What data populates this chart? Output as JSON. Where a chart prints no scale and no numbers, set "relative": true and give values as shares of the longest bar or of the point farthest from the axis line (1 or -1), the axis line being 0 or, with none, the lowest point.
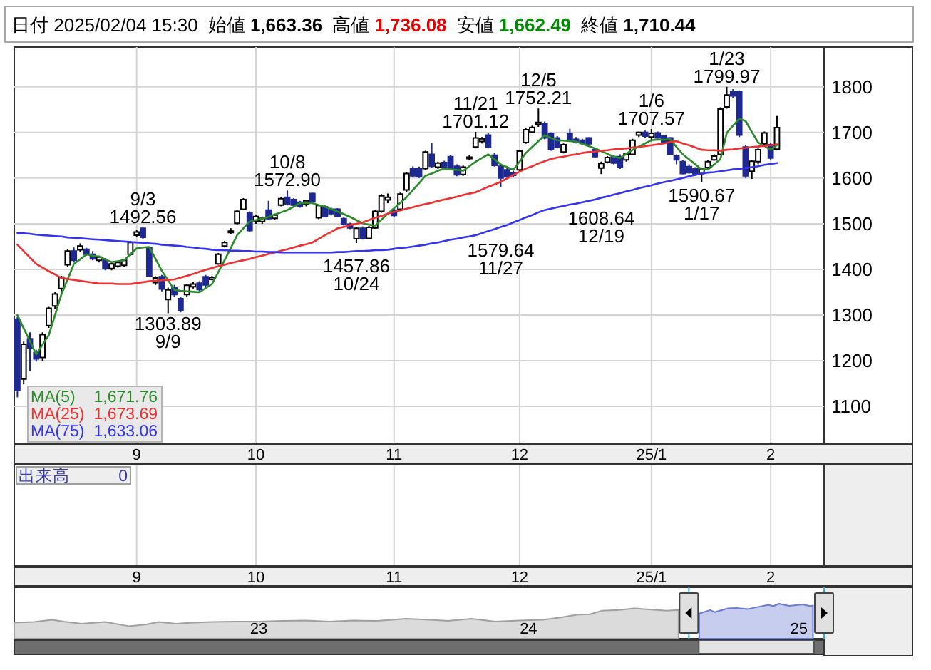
{
  "chart_data": [
    {
      "type": "candlestick",
      "title": "日付 2025/02/04 15:30",
      "annotations": [
        "始値 **1,663.36**",
        "高値 **1,736.08**",
        "安値 **1,662.49**",
        "終値 **1,710.44**",
        "1,671.76",
        "1,673.69",
        "1,633.06",
        {
          "text": "9/3\n1492.56",
          "y": 1492.56
        },
        {
          "text": "1303.89\n9/9",
          "y": 1303.89
        },
        {
          "text": "10/8\n1572.90",
          "y": 1572.9
        },
        {
          "text": "1457.86\n10/24",
          "y": 1457.86
        },
        {
          "text": "11/21\n1701.12",
          "y": 1701.12
        },
        {
          "text": "1579.64\n11/27",
          "y": 1579.64
        },
        {
          "text": "12/5\n1752.21",
          "y": 1752.21
        },
        {
          "text": "1608.64\n12/19",
          "y": 1608.64
        },
        {
          "text": "1/6\n1707.57",
          "y": 1707.57
        },
        {
          "text": "1590.67\n1/17",
          "y": 1590.67
        },
        {
          "text": "1/23\n1799.97",
          "y": 1799.97
        }
      ],
      "categories": [
        null,
        null,
        null,
        null,
        null,
        null,
        null,
        null,
        null,
        null,
        null,
        null,
        null,
        null,
        null,
        null,
        null,
        null,
        null,
        "9",
        null,
        null,
        null,
        null,
        null,
        null,
        null,
        null,
        null,
        null,
        null,
        null,
        null,
        null,
        null,
        null,
        null,
        null,
        "10",
        null,
        null,
        null,
        null,
        null,
        null,
        null,
        null,
        null,
        null,
        null,
        null,
        null,
        null,
        null,
        null,
        null,
        null,
        null,
        null,
        null,
        "11",
        null,
        null,
        null,
        null,
        null,
        null,
        null,
        null,
        null,
        null,
        null,
        null,
        null,
        null,
        null,
        null,
        null,
        null,
        null,
        "12",
        null,
        null,
        null,
        null,
        null,
        null,
        null,
        null,
        null,
        null,
        null,
        null,
        null,
        null,
        null,
        null,
        null,
        null,
        null,
        null,
        "25/1",
        null,
        null,
        null,
        null,
        null,
        null,
        null,
        null,
        null,
        null,
        null,
        null,
        null,
        null,
        null,
        null,
        null,
        null,
        "2",
        null
      ],
      "ohlc": [
        [
          1290,
          1296,
          1120,
          1135
        ],
        [
          1160,
          1242,
          1148,
          1236
        ],
        [
          1248,
          1262,
          1178,
          1228
        ],
        [
          1218,
          1224,
          1198,
          1204
        ],
        [
          1207,
          1262,
          1200,
          1257
        ],
        [
          1277,
          1318,
          1272,
          1315
        ],
        [
          1320,
          1350,
          1314,
          1346
        ],
        [
          1358,
          1386,
          1352,
          1383
        ],
        [
          1410,
          1444,
          1405,
          1440
        ],
        [
          1440,
          1448,
          1415,
          1420
        ],
        [
          1443,
          1457,
          1438,
          1451
        ],
        [
          1444,
          1447,
          1430,
          1433
        ],
        [
          1433,
          1440,
          1420,
          1423
        ],
        [
          1420,
          1430,
          1415,
          1427
        ],
        [
          1421,
          1425,
          1398,
          1402
        ],
        [
          1402,
          1415,
          1398,
          1412
        ],
        [
          1407,
          1418,
          1404,
          1415
        ],
        [
          1409,
          1423,
          1405,
          1420
        ],
        [
          1433,
          1462,
          1430,
          1459
        ],
        [
          1475,
          1486,
          1470,
          1482
        ],
        [
          1490,
          1492.56,
          1466,
          1470
        ],
        [
          1447,
          1450,
          1383,
          1386
        ],
        [
          1371,
          1385,
          1366,
          1381
        ],
        [
          1384,
          1388,
          1352,
          1357
        ],
        [
          1334,
          1360,
          1303.89,
          1355
        ],
        [
          1360,
          1366,
          1340,
          1345
        ],
        [
          1336,
          1340,
          1306,
          1310
        ],
        [
          1345,
          1368,
          1340,
          1365
        ],
        [
          1362,
          1372,
          1358,
          1368
        ],
        [
          1370,
          1374,
          1352,
          1356
        ],
        [
          1384,
          1388,
          1362,
          1366
        ],
        [
          1378,
          1386,
          1376,
          1382
        ],
        [
          1412,
          1436,
          1410,
          1433
        ],
        [
          1451,
          1462,
          1448,
          1459
        ],
        [
          1482,
          1490,
          1478,
          1484
        ],
        [
          1501,
          1530,
          1498,
          1527
        ],
        [
          1532,
          1556,
          1530,
          1553
        ],
        [
          1524,
          1527,
          1482,
          1485
        ],
        [
          1506,
          1520,
          1500,
          1516
        ],
        [
          1505,
          1516,
          1500,
          1512
        ],
        [
          1530,
          1550,
          1508,
          1511
        ],
        [
          1512,
          1522,
          1508,
          1519
        ],
        [
          1541,
          1558,
          1538,
          1555
        ],
        [
          1558,
          1572.9,
          1540,
          1543
        ],
        [
          1553,
          1556,
          1538,
          1541
        ],
        [
          1547,
          1550,
          1535,
          1538
        ],
        [
          1542,
          1552,
          1538,
          1550
        ],
        [
          1566,
          1568,
          1545,
          1548
        ],
        [
          1513,
          1542,
          1510,
          1540
        ],
        [
          1537,
          1540,
          1514,
          1517
        ],
        [
          1532,
          1535,
          1518,
          1522
        ],
        [
          1532,
          1534,
          1515,
          1517
        ],
        [
          1511,
          1514,
          1496,
          1499
        ],
        [
          1499,
          1502,
          1488,
          1491
        ],
        [
          1467,
          1492,
          1457.86,
          1490
        ],
        [
          1490,
          1494,
          1465,
          1468
        ],
        [
          1468,
          1495,
          1466,
          1492
        ],
        [
          1491,
          1530,
          1489,
          1527
        ],
        [
          1527,
          1565,
          1524,
          1561
        ],
        [
          1552,
          1566,
          1545,
          1558
        ],
        [
          1530,
          1534,
          1515,
          1518
        ],
        [
          1532,
          1568,
          1530,
          1565
        ],
        [
          1574,
          1613,
          1570,
          1610
        ],
        [
          1621,
          1626,
          1602,
          1605
        ],
        [
          1620,
          1625,
          1600,
          1603
        ],
        [
          1621,
          1660,
          1618,
          1657
        ],
        [
          1652,
          1678,
          1622,
          1626
        ],
        [
          1624,
          1636,
          1620,
          1633
        ],
        [
          1634,
          1638,
          1622,
          1624
        ],
        [
          1647,
          1650,
          1618,
          1621
        ],
        [
          1626,
          1630,
          1604,
          1607
        ],
        [
          1608,
          1628,
          1605,
          1624
        ],
        [
          1645,
          1650,
          1640,
          1646
        ],
        [
          1668,
          1701.12,
          1665,
          1688
        ],
        [
          1680,
          1690,
          1676,
          1686
        ],
        [
          1694,
          1698,
          1665,
          1668
        ],
        [
          1650,
          1655,
          1625,
          1628
        ],
        [
          1626,
          1630,
          1579.64,
          1600
        ],
        [
          1618,
          1622,
          1600,
          1604
        ],
        [
          1612,
          1616,
          1602,
          1606
        ],
        [
          1618,
          1662,
          1615,
          1659
        ],
        [
          1678,
          1710,
          1675,
          1706
        ],
        [
          1701,
          1715,
          1698,
          1711
        ],
        [
          1718,
          1752.21,
          1712,
          1722
        ],
        [
          1720,
          1724,
          1685,
          1688
        ],
        [
          1697,
          1700,
          1660,
          1662
        ],
        [
          1688,
          1692,
          1665,
          1668
        ],
        [
          1657,
          1676,
          1654,
          1673
        ],
        [
          1697,
          1708,
          1680,
          1683
        ],
        [
          1685,
          1690,
          1676,
          1678
        ],
        [
          1683,
          1686,
          1674,
          1676
        ],
        [
          1688,
          1690,
          1672,
          1675
        ],
        [
          1662,
          1666,
          1644,
          1647
        ],
        [
          1622,
          1636,
          1608.64,
          1632
        ],
        [
          1635,
          1648,
          1632,
          1645
        ],
        [
          1647,
          1650,
          1630,
          1633
        ],
        [
          1647,
          1652,
          1620,
          1623
        ],
        [
          1640,
          1656,
          1636,
          1653
        ],
        [
          1652,
          1686,
          1650,
          1683
        ],
        [
          1694,
          1702,
          1690,
          1700
        ],
        [
          1700,
          1704,
          1688,
          1692
        ],
        [
          1690,
          1707.57,
          1680,
          1698
        ],
        [
          1699,
          1702,
          1686,
          1688
        ],
        [
          1692,
          1695,
          1675,
          1678
        ],
        [
          1688,
          1690,
          1650,
          1652
        ],
        [
          1648,
          1652,
          1630,
          1640
        ],
        [
          1636,
          1640,
          1608,
          1610
        ],
        [
          1625,
          1630,
          1610,
          1612
        ],
        [
          1620,
          1624,
          1606,
          1608
        ],
        [
          1610,
          1622,
          1590.67,
          1620
        ],
        [
          1623,
          1640,
          1620,
          1636
        ],
        [
          1640,
          1652,
          1638,
          1648
        ],
        [
          1652,
          1755,
          1650,
          1751
        ],
        [
          1756,
          1799.97,
          1752,
          1782
        ],
        [
          1790,
          1795,
          1776,
          1780
        ],
        [
          1789,
          1792,
          1690,
          1694
        ],
        [
          1668,
          1672,
          1600,
          1605
        ],
        [
          1615,
          1640,
          1598,
          1637
        ],
        [
          1636,
          1665,
          1630,
          1662
        ],
        [
          1675,
          1702,
          1672,
          1699
        ],
        [
          1673,
          1678,
          1640,
          1644
        ],
        [
          1663.36,
          1736.08,
          1662.49,
          1710.44
        ]
      ],
      "series": [
        {
          "type": "line",
          "name": "MA(5)",
          "color": "#2a8a2a",
          "values": [
            1300,
            1271,
            1243,
            1214,
            1235,
            1256,
            1300,
            1345,
            1378,
            1412,
            1422,
            1433,
            1430,
            1428,
            1422,
            1416,
            1418,
            1420,
            1433,
            1446,
            1448,
            1449,
            1423,
            1397,
            1376,
            1355,
            1353,
            1352,
            1351,
            1350,
            1359,
            1368,
            1394,
            1420,
            1447,
            1475,
            1490,
            1505,
            1508,
            1511,
            1515,
            1520,
            1525,
            1530,
            1537,
            1545,
            1545,
            1545,
            1541,
            1537,
            1532,
            1527,
            1521,
            1515,
            1508,
            1501,
            1498,
            1496,
            1509,
            1522,
            1534,
            1546,
            1558,
            1574,
            1589,
            1605,
            1610,
            1616,
            1621,
            1619,
            1618,
            1616,
            1626,
            1636,
            1644,
            1652,
            1641,
            1630,
            1624,
            1618,
            1636,
            1655,
            1668,
            1681,
            1694,
            1688,
            1683,
            1682,
            1681,
            1680,
            1675,
            1670,
            1665,
            1659,
            1653,
            1647,
            1644,
            1653,
            1662,
            1669,
            1676,
            1683,
            1684,
            1684,
            1685,
            1668,
            1652,
            1641,
            1630,
            1619,
            1619,
            1630,
            1642,
            1699,
            1715,
            1730,
            1725,
            1701,
            1678,
            1670,
            1662,
            1672
          ]
        },
        {
          "type": "line",
          "name": "MA(25)",
          "color": "#f03030",
          "values": [
            1454,
            1440,
            1426,
            1412,
            1404,
            1396,
            1389,
            1381,
            1379,
            1377,
            1375,
            1373,
            1371,
            1369,
            1369,
            1369,
            1368,
            1368,
            1368,
            1370,
            1372,
            1374,
            1375,
            1376,
            1377,
            1378,
            1382,
            1386,
            1390,
            1395,
            1399,
            1403,
            1407,
            1410,
            1414,
            1417,
            1420,
            1423,
            1427,
            1430,
            1434,
            1437,
            1441,
            1444,
            1448,
            1452,
            1455,
            1459,
            1467,
            1475,
            1482,
            1490,
            1493,
            1497,
            1500,
            1503,
            1508,
            1513,
            1517,
            1522,
            1526,
            1529,
            1533,
            1536,
            1540,
            1543,
            1546,
            1550,
            1553,
            1556,
            1559,
            1563,
            1566,
            1569,
            1575,
            1581,
            1586,
            1592,
            1599,
            1607,
            1614,
            1621,
            1626,
            1632,
            1637,
            1642,
            1645,
            1647,
            1650,
            1652,
            1655,
            1657,
            1658,
            1660,
            1661,
            1663,
            1664,
            1665,
            1667,
            1668,
            1670,
            1672,
            1674,
            1676,
            1679,
            1681,
            1676,
            1672,
            1667,
            1662,
            1661,
            1661,
            1660,
            1662,
            1663,
            1665,
            1666,
            1668,
            1669,
            1671,
            1672,
            1674
          ]
        },
        {
          "type": "line",
          "name": "MA(75)",
          "color": "#3434f0",
          "values": [
            1480,
            1479,
            1478,
            1476,
            1475,
            1474,
            1473,
            1472,
            1470,
            1469,
            1468,
            1467,
            1466,
            1465,
            1464,
            1463,
            1462,
            1461,
            1460,
            1459,
            1458,
            1457,
            1456,
            1454,
            1453,
            1452,
            1451,
            1449,
            1448,
            1446,
            1445,
            1443,
            1442,
            1442,
            1441,
            1441,
            1440,
            1440,
            1439,
            1439,
            1438,
            1438,
            1437,
            1437,
            1437,
            1437,
            1437,
            1437,
            1437,
            1437,
            1437,
            1438,
            1438,
            1439,
            1440,
            1440,
            1441,
            1442,
            1442,
            1443,
            1445,
            1447,
            1448,
            1450,
            1452,
            1454,
            1457,
            1459,
            1462,
            1465,
            1467,
            1470,
            1472,
            1475,
            1479,
            1484,
            1488,
            1493,
            1497,
            1503,
            1508,
            1514,
            1519,
            1525,
            1530,
            1533,
            1536,
            1539,
            1542,
            1544,
            1547,
            1550,
            1553,
            1557,
            1560,
            1564,
            1567,
            1571,
            1574,
            1578,
            1581,
            1584,
            1588,
            1591,
            1594,
            1597,
            1600,
            1604,
            1607,
            1610,
            1612,
            1613,
            1615,
            1617,
            1619,
            1620,
            1622,
            1624,
            1626,
            1629,
            1631,
            1633
          ]
        }
      ],
      "ylim": [
        1019,
        1887
      ],
      "yticks": [
        1100,
        1200,
        1300,
        1400,
        1500,
        1600,
        1700,
        1800
      ],
      "grid": true,
      "legend": "bottom left"
    },
    {
      "type": "other",
      "title": "出来高",
      "annotations": [
        "0"
      ]
    },
    {
      "type": "area",
      "relative": true,
      "xlim": [
        "2022-02-04",
        "2025-02-04"
      ],
      "xticks": [
        {
          "value": "2023-01-01",
          "label": "23"
        },
        {
          "value": "2024-01-01",
          "label": "24"
        },
        {
          "value": "2025-01-01",
          "label": "25"
        }
      ],
      "series": [
        {
          "color": "#a0a0a0",
          "x": [
            "2022-02-04",
            "2022-03-03",
            "2022-03-27",
            "2022-04-12",
            "2022-05-06",
            "2022-06-07",
            "2022-07-09",
            "2022-08-02",
            "2022-08-18",
            "2022-09-11",
            "2022-10-05",
            "2022-10-29",
            "2022-11-30",
            "2023-01-01",
            "2023-02-02",
            "2023-03-06",
            "2023-04-07",
            "2023-05-09",
            "2023-06-10",
            "2023-07-19",
            "2023-08-21",
            "2023-09-14",
            "2023-10-16",
            "2023-11-17",
            "2023-12-19",
            "2024-01-20",
            "2024-02-13",
            "2024-03-08",
            "2024-03-24",
            "2024-04-09",
            "2024-05-03",
            "2024-05-23",
            "2024-06-12",
            "2024-07-06",
            "2024-07-22"
          ],
          "values": [
            0.46,
            0.48,
            0.54,
            0.49,
            0.43,
            0.48,
            0.36,
            0.41,
            0.48,
            0.43,
            0.46,
            0.48,
            0.49,
            0.49,
            0.51,
            0.52,
            0.49,
            0.52,
            0.51,
            0.57,
            0.54,
            0.51,
            0.57,
            0.49,
            0.52,
            0.54,
            0.61,
            0.69,
            0.7,
            0.8,
            0.82,
            0.87,
            0.84,
            0.8,
            0.82
          ]
        },
        {
          "color": "#6b7bd1",
          "x": [
            "2024-08-19",
            "2024-09-03",
            "2024-09-09",
            "2024-09-27",
            "2024-10-08",
            "2024-10-24",
            "2024-11-21",
            "2024-11-27",
            "2024-12-05",
            "2024-12-19",
            "2025-01-06",
            "2025-01-17",
            "2025-01-20"
          ],
          "values": [
            0.72,
            0.82,
            0.76,
            0.87,
            0.88,
            0.85,
            0.97,
            0.93,
            1,
            0.94,
            0.98,
            0.93,
            0.95
          ]
        }
      ]
    }
  ]
}
